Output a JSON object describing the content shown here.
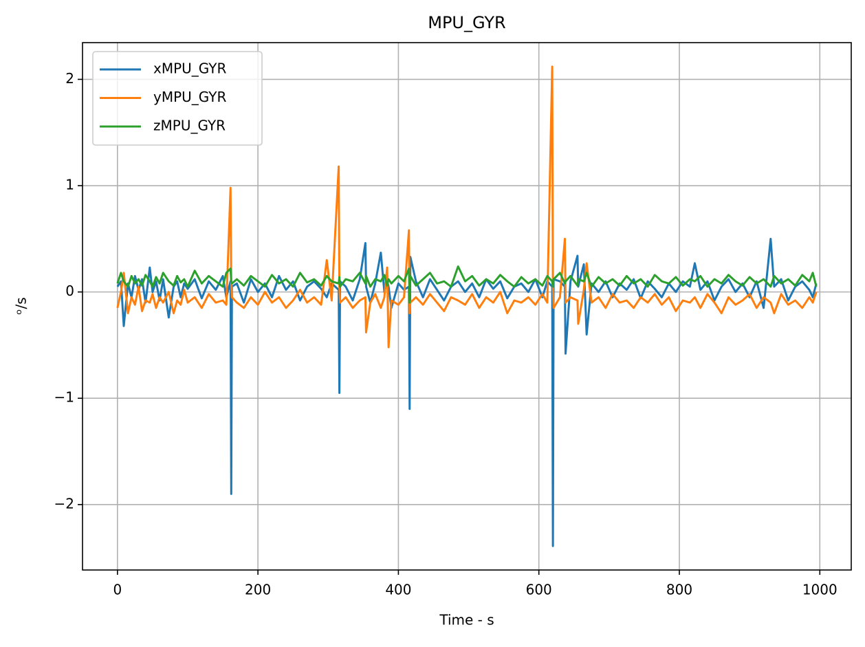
{
  "chart_data": {
    "type": "line",
    "title": "MPU_GYR",
    "xlabel": "Time - s",
    "ylabel": "ᵒ/s",
    "x": [
      0,
      5,
      9,
      15,
      20,
      25,
      30,
      35,
      40,
      46,
      50,
      55,
      60,
      65,
      73,
      80,
      85,
      90,
      95,
      100,
      110,
      120,
      130,
      140,
      150,
      155,
      161,
      162,
      163,
      170,
      180,
      190,
      200,
      210,
      220,
      230,
      240,
      250,
      260,
      270,
      280,
      290,
      298,
      305,
      315,
      316,
      317,
      325,
      335,
      345,
      353,
      354,
      360,
      367,
      375,
      380,
      384,
      386,
      390,
      400,
      408,
      415,
      416,
      417,
      425,
      435,
      445,
      455,
      465,
      475,
      485,
      495,
      505,
      515,
      525,
      535,
      545,
      555,
      565,
      575,
      585,
      595,
      605,
      612,
      619,
      620,
      621,
      630,
      637,
      638,
      645,
      655,
      656,
      664,
      668,
      675,
      685,
      695,
      705,
      715,
      725,
      735,
      745,
      755,
      765,
      775,
      785,
      795,
      805,
      815,
      822,
      830,
      840,
      850,
      860,
      870,
      880,
      890,
      900,
      910,
      920,
      930,
      935,
      945,
      955,
      965,
      975,
      985,
      990,
      995
    ],
    "series": [
      {
        "name": "xMPU_GYR",
        "color": "#1f77b4",
        "values": [
          0.05,
          0.1,
          -0.32,
          0.08,
          -0.05,
          0.15,
          0.02,
          0.12,
          -0.1,
          0.23,
          0.0,
          0.1,
          -0.08,
          0.12,
          -0.24,
          0.05,
          0.1,
          -0.05,
          0.08,
          0.03,
          0.12,
          -0.06,
          0.1,
          0.02,
          0.15,
          -0.05,
          0.1,
          -1.9,
          0.05,
          0.08,
          -0.1,
          0.12,
          0.0,
          0.08,
          -0.05,
          0.15,
          0.02,
          0.1,
          -0.08,
          0.05,
          0.1,
          0.03,
          -0.05,
          0.08,
          0.02,
          -0.95,
          0.1,
          0.05,
          -0.08,
          0.12,
          0.46,
          0.05,
          -0.1,
          0.08,
          0.37,
          0.0,
          0.1,
          0.05,
          -0.15,
          0.08,
          0.02,
          0.05,
          -1.1,
          0.33,
          0.1,
          -0.05,
          0.12,
          0.02,
          -0.08,
          0.05,
          0.1,
          0.0,
          0.08,
          -0.05,
          0.12,
          0.03,
          0.1,
          -0.06,
          0.05,
          0.08,
          0.0,
          0.12,
          -0.05,
          0.1,
          0.05,
          -2.39,
          0.12,
          0.1,
          0.05,
          -0.58,
          0.1,
          0.34,
          0.05,
          0.26,
          -0.4,
          0.08,
          0.0,
          0.1,
          -0.05,
          0.08,
          0.02,
          0.12,
          -0.06,
          0.1,
          0.03,
          -0.05,
          0.08,
          0.0,
          0.1,
          0.05,
          0.27,
          0.02,
          0.1,
          -0.08,
          0.05,
          0.12,
          0.0,
          0.08,
          -0.05,
          0.1,
          -0.15,
          0.5,
          0.05,
          0.12,
          -0.08,
          0.05,
          0.1,
          0.02,
          -0.05,
          0.08
        ]
      },
      {
        "name": "yMPU_GYR",
        "color": "#ff7f0e",
        "values": [
          -0.15,
          0.0,
          0.18,
          -0.2,
          -0.05,
          -0.12,
          0.05,
          -0.18,
          -0.08,
          -0.1,
          -0.02,
          -0.15,
          -0.05,
          -0.1,
          0.0,
          -0.2,
          -0.08,
          -0.12,
          0.02,
          -0.1,
          -0.05,
          -0.15,
          -0.02,
          -0.1,
          -0.08,
          -0.12,
          0.98,
          0.1,
          -0.05,
          -0.1,
          -0.15,
          -0.05,
          -0.12,
          0.0,
          -0.1,
          -0.05,
          -0.15,
          -0.08,
          0.02,
          -0.1,
          -0.05,
          -0.12,
          0.3,
          -0.08,
          1.18,
          0.05,
          -0.1,
          -0.05,
          -0.15,
          -0.08,
          -0.05,
          -0.38,
          -0.1,
          -0.02,
          -0.15,
          -0.05,
          0.23,
          -0.52,
          -0.08,
          -0.12,
          -0.05,
          0.58,
          -0.2,
          -0.1,
          -0.05,
          -0.12,
          -0.02,
          -0.1,
          -0.18,
          -0.05,
          -0.08,
          -0.12,
          -0.02,
          -0.15,
          -0.05,
          -0.1,
          0.0,
          -0.2,
          -0.08,
          -0.1,
          -0.05,
          -0.12,
          -0.02,
          -0.1,
          2.12,
          0.05,
          -0.15,
          -0.05,
          0.5,
          -0.1,
          -0.05,
          -0.08,
          -0.3,
          0.02,
          0.27,
          -0.1,
          -0.05,
          -0.15,
          -0.02,
          -0.1,
          -0.08,
          -0.15,
          -0.05,
          -0.1,
          -0.02,
          -0.12,
          -0.05,
          -0.18,
          -0.08,
          -0.1,
          -0.05,
          -0.15,
          -0.02,
          -0.1,
          -0.2,
          -0.05,
          -0.12,
          -0.08,
          -0.02,
          -0.15,
          -0.05,
          -0.1,
          -0.2,
          -0.02,
          -0.12,
          -0.08,
          -0.15,
          -0.05,
          -0.1,
          0.0
        ]
      },
      {
        "name": "zMPU_GYR",
        "color": "#2ca02c",
        "values": [
          0.08,
          0.18,
          0.1,
          0.05,
          0.15,
          0.08,
          0.12,
          0.06,
          0.16,
          0.1,
          0.05,
          0.14,
          0.08,
          0.18,
          0.1,
          0.06,
          0.15,
          0.09,
          0.12,
          0.05,
          0.2,
          0.08,
          0.15,
          0.1,
          0.05,
          0.18,
          0.22,
          0.1,
          0.08,
          0.12,
          0.06,
          0.15,
          0.1,
          0.05,
          0.16,
          0.08,
          0.12,
          0.05,
          0.18,
          0.09,
          0.12,
          0.06,
          0.15,
          0.1,
          0.08,
          0.14,
          0.05,
          0.12,
          0.1,
          0.18,
          0.08,
          0.15,
          0.05,
          0.12,
          0.1,
          0.16,
          0.06,
          0.12,
          0.08,
          0.15,
          0.1,
          0.22,
          -0.1,
          0.15,
          0.06,
          0.12,
          0.18,
          0.08,
          0.1,
          0.05,
          0.24,
          0.1,
          0.15,
          0.06,
          0.12,
          0.08,
          0.16,
          0.1,
          0.05,
          0.14,
          0.08,
          0.12,
          0.06,
          0.15,
          0.1,
          0.05,
          0.12,
          0.18,
          0.08,
          0.1,
          0.15,
          0.06,
          0.12,
          0.1,
          0.18,
          0.05,
          0.14,
          0.08,
          0.12,
          0.06,
          0.15,
          0.08,
          0.12,
          0.05,
          0.16,
          0.1,
          0.08,
          0.14,
          0.06,
          0.12,
          0.1,
          0.15,
          0.05,
          0.12,
          0.08,
          0.16,
          0.1,
          0.06,
          0.14,
          0.08,
          0.12,
          0.05,
          0.15,
          0.08,
          0.12,
          0.06,
          0.16,
          0.1,
          0.18,
          0.05
        ]
      }
    ],
    "xlim": [
      -49.75,
      1044.75
    ],
    "ylim": [
      -2.6155,
      2.3455
    ],
    "xticks": [
      0,
      200,
      400,
      600,
      800,
      1000
    ],
    "yticks": [
      {
        "value": -2,
        "label": "−2"
      },
      {
        "value": -1,
        "label": "−1"
      },
      0,
      1,
      2
    ],
    "grid": true,
    "legend": "upper left"
  }
}
